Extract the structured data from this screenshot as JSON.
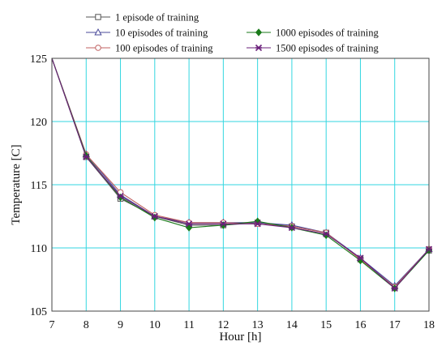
{
  "chart_data": {
    "type": "line",
    "xlabel": "Hour [h]",
    "ylabel": "Temperature [C]",
    "xlim": [
      7,
      18
    ],
    "ylim": [
      105,
      125
    ],
    "xticks": [
      7,
      8,
      9,
      10,
      11,
      12,
      13,
      14,
      15,
      16,
      17,
      18
    ],
    "yticks": [
      105,
      110,
      115,
      120,
      125
    ],
    "grid": true,
    "legend_position": "top",
    "x": [
      7,
      8,
      9,
      10,
      11,
      12,
      13,
      14,
      15,
      16,
      17,
      18
    ],
    "series": [
      {
        "name": "1 episode of training",
        "marker": "square",
        "color": "#555555",
        "values": [
          125,
          117.2,
          113.9,
          112.5,
          111.8,
          111.8,
          112.0,
          111.7,
          111.2,
          109.1,
          106.9,
          109.8
        ]
      },
      {
        "name": "10 episodes of training",
        "marker": "triangle",
        "color": "#4a4a9a",
        "values": [
          125,
          117.4,
          114.2,
          112.5,
          112.0,
          112.0,
          112.0,
          111.8,
          111.2,
          109.2,
          107.0,
          109.9
        ]
      },
      {
        "name": "100 episodes of training",
        "marker": "circle",
        "color": "#c06060",
        "values": [
          125,
          117.4,
          114.4,
          112.6,
          112.0,
          112.0,
          111.9,
          111.7,
          111.2,
          109.1,
          106.9,
          109.9
        ]
      },
      {
        "name": "1000 episodes of training",
        "marker": "diamond",
        "color": "#1a7a1a",
        "values": [
          125,
          117.3,
          114.0,
          112.4,
          111.6,
          111.8,
          112.1,
          111.6,
          111.0,
          109.0,
          106.8,
          109.8
        ]
      },
      {
        "name": "1500 episodes of training",
        "marker": "star",
        "color": "#6a1f7a",
        "values": [
          125,
          117.2,
          114.1,
          112.5,
          111.9,
          111.9,
          111.9,
          111.6,
          111.1,
          109.2,
          106.8,
          109.9
        ]
      }
    ]
  }
}
